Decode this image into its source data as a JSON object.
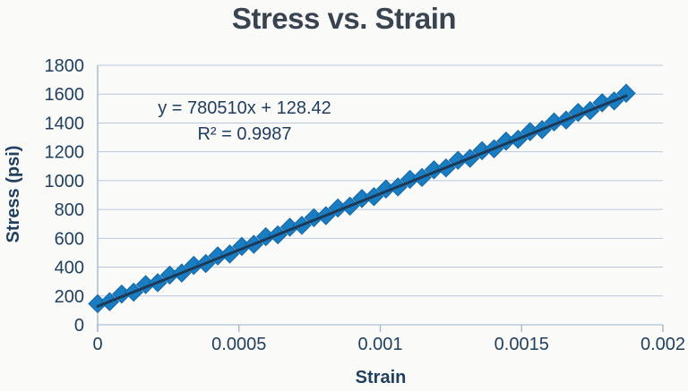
{
  "title": "Stress vs. Strain",
  "colors": {
    "background": "#fafaf8",
    "grid": "#b9c8dd",
    "axis": "#9fb4cd",
    "marker_fill": "#1a7cc1",
    "marker_edge": "#1166a6",
    "trendline": "#1c3a57",
    "title_text": "#3a4450",
    "tick_text": "#21405f",
    "equation_text": "#1f3c5e"
  },
  "chart_data": {
    "type": "scatter",
    "title": "Stress vs. Strain",
    "xlabel": "Strain",
    "ylabel": "Stress (psi)",
    "xlim": [
      0,
      0.002
    ],
    "ylim": [
      0,
      1800
    ],
    "grid": "horizontal",
    "legend": "none",
    "x_ticks": [
      0,
      0.0005,
      0.001,
      0.0015,
      0.002
    ],
    "x_tick_labels": [
      "0",
      "0.0005",
      "0.001",
      "0.0015",
      "0.002"
    ],
    "y_ticks": [
      0,
      200,
      400,
      600,
      800,
      1000,
      1200,
      1400,
      1600,
      1800
    ],
    "y_tick_labels": [
      "0",
      "200",
      "400",
      "600",
      "800",
      "1000",
      "1200",
      "1400",
      "1600",
      "1800"
    ],
    "trendline": {
      "slope": 780510,
      "intercept": 128.42,
      "equation": "y = 780510x + 128.42",
      "r_squared": "R² = 0.9987",
      "x_start": 0,
      "x_end": 0.00187
    },
    "series": [
      {
        "name": "Stress",
        "marker": "diamond",
        "color": "#1a7cc1",
        "edge_color": "#1166a6",
        "points": [
          [
            0,
            146
          ],
          [
            4.25e-05,
            160
          ],
          [
            8.5e-05,
            213
          ],
          [
            0.0001275,
            226
          ],
          [
            0.00017,
            279
          ],
          [
            0.0002125,
            292
          ],
          [
            0.000255,
            345
          ],
          [
            0.0002975,
            359
          ],
          [
            0.00034,
            412
          ],
          [
            0.0003825,
            425
          ],
          [
            0.000425,
            478
          ],
          [
            0.0004675,
            491
          ],
          [
            0.00051,
            544
          ],
          [
            0.0005525,
            558
          ],
          [
            0.000595,
            611
          ],
          [
            0.0006375,
            624
          ],
          [
            0.00068,
            677
          ],
          [
            0.0007225,
            690
          ],
          [
            0.000765,
            743
          ],
          [
            0.0008075,
            757
          ],
          [
            0.00085,
            810
          ],
          [
            0.0008925,
            823
          ],
          [
            0.000935,
            876
          ],
          [
            0.0009775,
            889
          ],
          [
            0.00102,
            942
          ],
          [
            0.0010625,
            956
          ],
          [
            0.001105,
            1009
          ],
          [
            0.0011475,
            1022
          ],
          [
            0.00119,
            1075
          ],
          [
            0.0012325,
            1088
          ],
          [
            0.001275,
            1141
          ],
          [
            0.0013175,
            1155
          ],
          [
            0.00136,
            1208
          ],
          [
            0.0014025,
            1221
          ],
          [
            0.001445,
            1274
          ],
          [
            0.0014875,
            1287
          ],
          [
            0.00153,
            1340
          ],
          [
            0.0015725,
            1354
          ],
          [
            0.001615,
            1407
          ],
          [
            0.0016575,
            1420
          ],
          [
            0.0017,
            1473
          ],
          [
            0.0017425,
            1486
          ],
          [
            0.001785,
            1540
          ],
          [
            0.0018275,
            1553
          ],
          [
            0.00187,
            1606
          ]
        ]
      }
    ]
  }
}
